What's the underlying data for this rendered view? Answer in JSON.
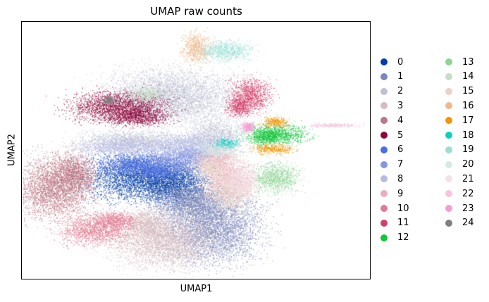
{
  "chart_data": {
    "type": "scatter",
    "title": "UMAP raw counts",
    "xlabel": "UMAP1",
    "ylabel": "UMAP2",
    "ticks": "none",
    "legend_position": "right, two columns",
    "series": [
      {
        "name": "0",
        "color": "#023fa5",
        "blobs": [
          [
            -1.2,
            -0.6,
            2.6,
            1.4
          ],
          [
            0.6,
            -0.9,
            1.6,
            1.2
          ]
        ]
      },
      {
        "name": "1",
        "color": "#7d87b9",
        "blobs": [
          [
            2.4,
            -3.4,
            2.4,
            2.2
          ],
          [
            1.2,
            -2.0,
            1.8,
            1.0
          ]
        ]
      },
      {
        "name": "2",
        "color": "#bec1d4",
        "blobs": [
          [
            0.4,
            4.2,
            3.2,
            1.6
          ],
          [
            -1.5,
            1.6,
            2.6,
            0.6
          ],
          [
            2.6,
            1.8,
            1.4,
            1.0
          ]
        ]
      },
      {
        "name": "3",
        "color": "#d6bcc0",
        "blobs": [
          [
            0.0,
            -4.3,
            2.4,
            1.6
          ],
          [
            -0.9,
            -3.3,
            1.0,
            0.8
          ]
        ]
      },
      {
        "name": "4",
        "color": "#bb7784",
        "blobs": [
          [
            -5.4,
            -1.2,
            1.8,
            1.8
          ],
          [
            -4.4,
            -0.3,
            1.0,
            1.2
          ]
        ]
      },
      {
        "name": "5",
        "color": "#8e063b",
        "blobs": [
          [
            -2.2,
            3.6,
            2.4,
            0.9
          ],
          [
            -1.3,
            3.0,
            1.6,
            0.5
          ]
        ]
      },
      {
        "name": "6",
        "color": "#4a6fe3",
        "blobs": [
          [
            -1.5,
            0.2,
            1.8,
            0.6
          ],
          [
            -0.3,
            -0.2,
            1.2,
            0.6
          ]
        ]
      },
      {
        "name": "7",
        "color": "#8595e1",
        "blobs": [
          [
            0.6,
            0.4,
            1.6,
            0.8
          ],
          [
            1.6,
            0.8,
            1.0,
            0.5
          ]
        ]
      },
      {
        "name": "8",
        "color": "#b5bbe3",
        "blobs": [
          [
            -1.9,
            1.2,
            2.4,
            0.5
          ],
          [
            1.2,
            1.4,
            1.6,
            0.6
          ]
        ]
      },
      {
        "name": "9",
        "color": "#e6afb9",
        "blobs": [
          [
            3.2,
            -0.6,
            1.4,
            1.2
          ],
          [
            2.6,
            0.6,
            1.0,
            0.6
          ]
        ]
      },
      {
        "name": "10",
        "color": "#e07b91",
        "blobs": [
          [
            -3.3,
            -3.7,
            1.8,
            0.9
          ],
          [
            -2.4,
            -3.1,
            1.0,
            0.5
          ]
        ]
      },
      {
        "name": "11",
        "color": "#d33f6a",
        "blobs": [
          [
            4.3,
            4.3,
            1.0,
            1.0
          ],
          [
            3.7,
            3.6,
            0.6,
            0.6
          ]
        ]
      },
      {
        "name": "12",
        "color": "#11c638",
        "blobs": [
          [
            5.6,
            2.0,
            1.5,
            0.6
          ],
          [
            5.1,
            1.8,
            0.8,
            0.4
          ]
        ]
      },
      {
        "name": "13",
        "color": "#8dd593",
        "blobs": [
          [
            5.6,
            -0.6,
            1.1,
            0.9
          ]
        ]
      },
      {
        "name": "14",
        "color": "#c6dec7",
        "blobs": [
          [
            -0.8,
            4.3,
            0.8,
            0.4
          ]
        ]
      },
      {
        "name": "15",
        "color": "#ead3c6",
        "blobs": [
          [
            3.3,
            -1.4,
            1.0,
            1.2
          ],
          [
            2.2,
            0.0,
            0.8,
            0.6
          ]
        ]
      },
      {
        "name": "16",
        "color": "#f0b98d",
        "blobs": [
          [
            1.6,
            7.1,
            0.7,
            0.9
          ]
        ]
      },
      {
        "name": "17",
        "color": "#ef9708",
        "blobs": [
          [
            5.4,
            1.1,
            1.0,
            0.3
          ],
          [
            5.5,
            2.7,
            0.6,
            0.3
          ]
        ]
      },
      {
        "name": "18",
        "color": "#0fcfc0",
        "blobs": [
          [
            3.1,
            1.4,
            0.6,
            0.3
          ]
        ]
      },
      {
        "name": "19",
        "color": "#9cded6",
        "blobs": [
          [
            3.1,
            6.9,
            1.3,
            0.6
          ]
        ]
      },
      {
        "name": "20",
        "color": "#d5eae7",
        "blobs": [
          [
            2.6,
            1.0,
            1.2,
            0.5
          ]
        ]
      },
      {
        "name": "21",
        "color": "#f3e1eb",
        "blobs": [
          [
            3.8,
            -0.8,
            0.8,
            0.8
          ]
        ]
      },
      {
        "name": "22",
        "color": "#f6c4e1",
        "blobs": [
          [
            8.4,
            2.5,
            1.2,
            0.12
          ],
          [
            4.1,
            2.4,
            0.3,
            0.3
          ]
        ]
      },
      {
        "name": "23",
        "color": "#f79cd4",
        "blobs": [
          [
            4.2,
            2.4,
            0.25,
            0.25
          ]
        ]
      },
      {
        "name": "24",
        "color": "#7f7f7f",
        "blobs": [
          [
            -2.7,
            4.0,
            0.3,
            0.2
          ]
        ]
      }
    ],
    "xlim": [
      -7.0,
      10.2
    ],
    "ylim": [
      -6.6,
      8.6
    ]
  }
}
